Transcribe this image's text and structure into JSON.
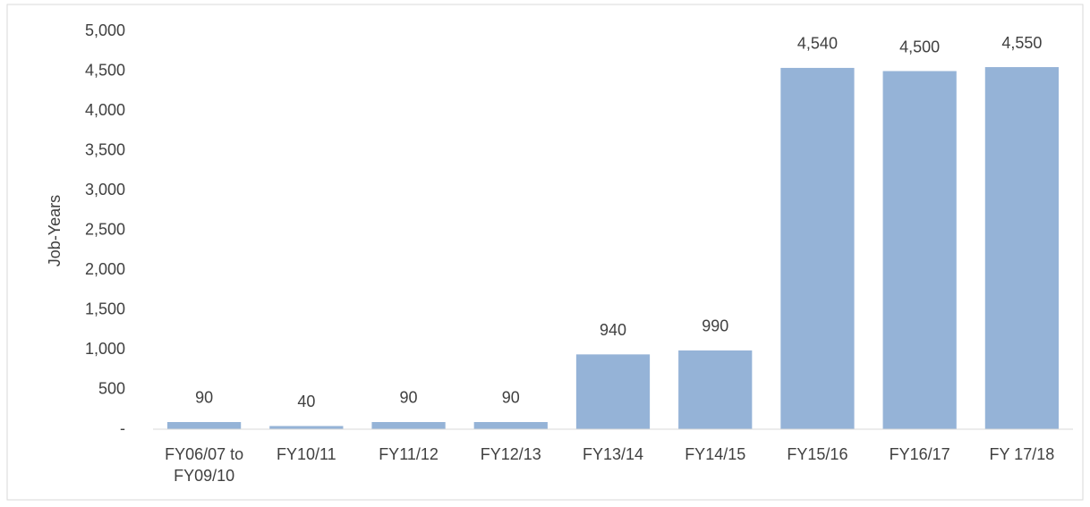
{
  "chart_data": {
    "type": "bar",
    "y_label": "Job-Years",
    "categories": [
      "FY06/07 to FY09/10",
      "FY10/11",
      "FY11/12",
      "FY12/13",
      "FY13/14",
      "FY14/15",
      "FY15/16",
      "FY16/17",
      "FY 17/18"
    ],
    "values": [
      90,
      40,
      90,
      90,
      940,
      990,
      4540,
      4500,
      4550
    ],
    "value_labels": [
      "90",
      "40",
      "90",
      "90",
      "940",
      "990",
      "4,540",
      "4,500",
      "4,550"
    ],
    "color": "#95b3d7",
    "ylim": [
      0,
      5000
    ],
    "yticks": [
      {
        "value": 0,
        "label": "-"
      },
      500,
      {
        "value": 1000,
        "label": "1,000"
      },
      {
        "value": 1500,
        "label": "1,500"
      },
      {
        "value": 2000,
        "label": "2,000"
      },
      {
        "value": 2500,
        "label": "2,500"
      },
      {
        "value": 3000,
        "label": "3,000"
      },
      {
        "value": 3500,
        "label": "3,500"
      },
      {
        "value": 4000,
        "label": "4,000"
      },
      {
        "value": 4500,
        "label": "4,500"
      },
      {
        "value": 5000,
        "label": "5,000"
      }
    ],
    "grid": false
  }
}
